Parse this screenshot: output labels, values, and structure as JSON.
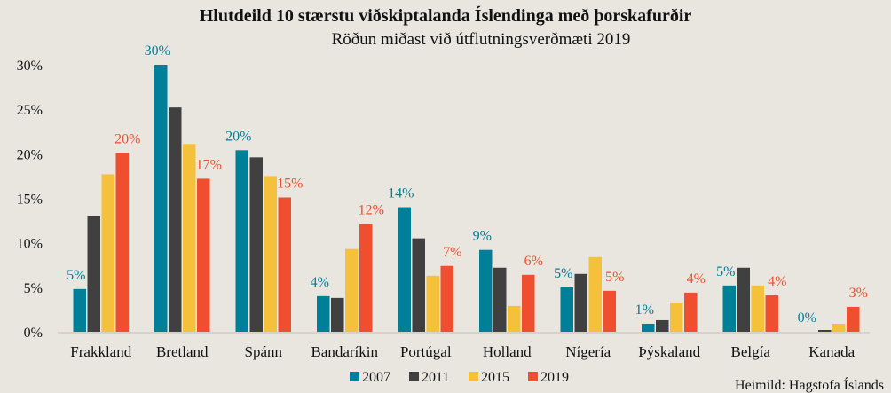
{
  "chart_data": {
    "type": "bar",
    "title": "Hlutdeild 10 stærstu viðskiptalanda Íslendinga með þorskafurðir",
    "subtitle": "Röðun miðast við útflutningsverðmæti 2019",
    "xlabel": "",
    "ylabel": "",
    "ylim": [
      0,
      30
    ],
    "yticks": [
      0,
      5,
      10,
      15,
      20,
      25,
      30
    ],
    "ytick_labels": [
      "0%",
      "5%",
      "10%",
      "15%",
      "20%",
      "25%",
      "30%"
    ],
    "grid": false,
    "legend_position": "bottom",
    "categories": [
      "Frakkland",
      "Bretland",
      "Spánn",
      "Bandaríkin",
      "Portúgal",
      "Holland",
      "Nígería",
      "Þýskaland",
      "Belgía",
      "Kanada"
    ],
    "series": [
      {
        "name": "2007",
        "color": "#007f99",
        "values": [
          4.8,
          30.0,
          20.4,
          4.0,
          14.0,
          9.2,
          5.0,
          0.9,
          5.2,
          0.0
        ],
        "labels": [
          "5%",
          "30%",
          "20%",
          "4%",
          "14%",
          "9%",
          "5%",
          "1%",
          "5%",
          "0%"
        ]
      },
      {
        "name": "2011",
        "color": "#404040",
        "values": [
          13.0,
          25.2,
          19.6,
          3.8,
          10.5,
          7.2,
          6.5,
          1.3,
          7.2,
          0.2
        ]
      },
      {
        "name": "2015",
        "color": "#f5c13b",
        "values": [
          17.7,
          21.1,
          17.5,
          9.3,
          6.3,
          2.9,
          8.4,
          3.3,
          5.2,
          0.9
        ]
      },
      {
        "name": "2019",
        "color": "#ef4f2e",
        "values": [
          20.1,
          17.2,
          15.1,
          12.1,
          7.4,
          6.4,
          4.6,
          4.4,
          4.1,
          2.8
        ],
        "labels": [
          "20%",
          "17%",
          "15%",
          "12%",
          "7%",
          "6%",
          "5%",
          "4%",
          "4%",
          "3%"
        ]
      }
    ],
    "source": "Heimild:  Hagstofa Íslands"
  }
}
